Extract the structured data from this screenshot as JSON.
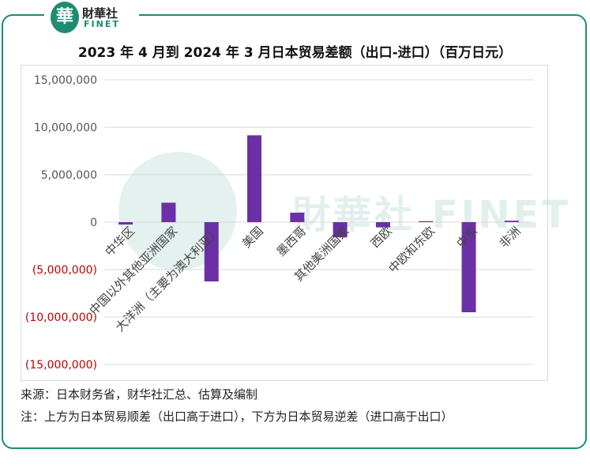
{
  "logo": {
    "mark": "華",
    "name_cn": "財華社",
    "name_en": "FINET"
  },
  "watermark": {
    "mark": "華",
    "text": "財華社 FINET"
  },
  "chart_data": {
    "type": "bar",
    "title": "2023 年 4 月到 2024 年 3 月日本贸易差额（出口-进口）（百万日元）",
    "categories": [
      "中华区",
      "中国以外其他亚洲国家",
      "大洋洲（主要为澳大利亚）",
      "美国",
      "墨西哥",
      "其他美洲国家",
      "西欧",
      "中欧和东欧",
      "中东",
      "非洲"
    ],
    "values": [
      -250000,
      2050000,
      -6250000,
      9150000,
      1000000,
      -1600000,
      -550000,
      100000,
      -9500000,
      150000
    ],
    "ylim": [
      -15000000,
      15000000
    ],
    "yticks": [
      15000000,
      10000000,
      5000000,
      0,
      -5000000,
      -10000000,
      -15000000
    ],
    "ytick_labels": [
      "15,000,000",
      "10,000,000",
      "5,000,000",
      "0",
      "(5,000,000)",
      "(10,000,000)",
      "(15,000,000)"
    ],
    "bar_color": "#6b2fa6",
    "positive_label_color": "#555555",
    "negative_label_color": "#c00000",
    "grid": true
  },
  "footer": {
    "source": "来源：日本财务省，财华社汇总、估算及编制",
    "note": "注：上方为日本贸易顺差（出口高于进口），下方为日本贸易逆差（进口高于出口）"
  }
}
